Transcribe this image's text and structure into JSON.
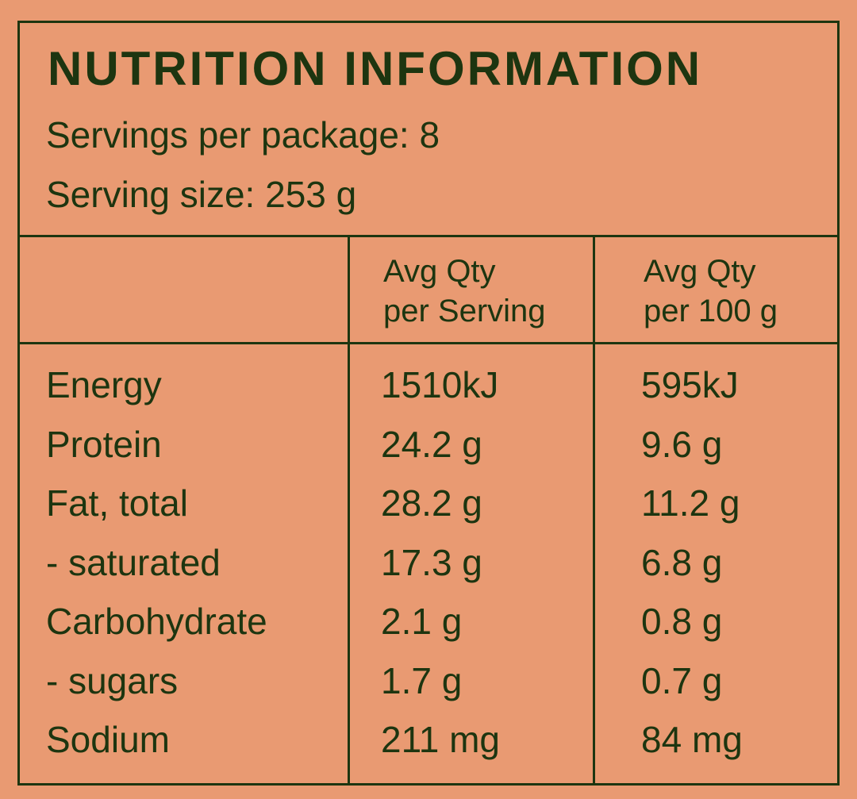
{
  "header": {
    "title": "NUTRITION INFORMATION",
    "servings": "Servings per package: 8",
    "serving_size": "Serving size: 253 g"
  },
  "table": {
    "columns": [
      [
        "Avg Qty",
        "per Serving"
      ],
      [
        "Avg Qty",
        "per 100 g"
      ]
    ],
    "rows": [
      [
        "Energy",
        "1510kJ",
        "595kJ"
      ],
      [
        "Protein",
        "24.2 g",
        "9.6 g"
      ],
      [
        "Fat, total",
        "28.2 g",
        "11.2 g"
      ],
      [
        "- saturated",
        "17.3 g",
        "6.8 g"
      ],
      [
        "Carbohydrate",
        "2.1 g",
        "0.8 g"
      ],
      [
        "- sugars",
        "1.7 g",
        "0.7 g"
      ],
      [
        "Sodium",
        "211 mg",
        "84 mg"
      ]
    ]
  }
}
